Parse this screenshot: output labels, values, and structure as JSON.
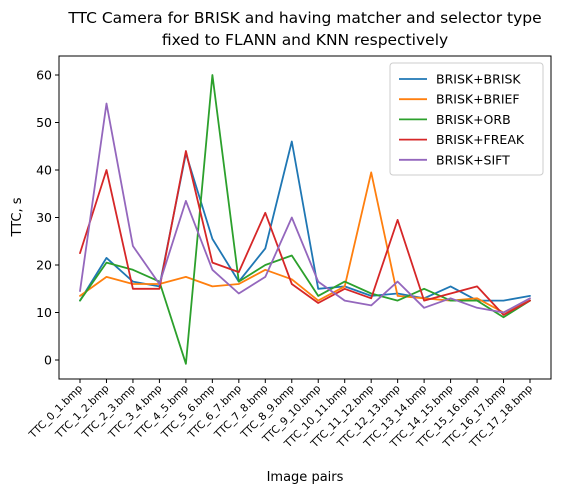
{
  "chart_data": {
    "type": "line",
    "title_lines": [
      "TTC Camera for BRISK and having matcher and selector type",
      "fixed to FLANN and KNN respectively"
    ],
    "xlabel": "Image pairs",
    "ylabel": "TTC, s",
    "ylim": [
      -4,
      64
    ],
    "yticks": [
      0,
      10,
      20,
      30,
      40,
      50,
      60
    ],
    "categories": [
      "TTC_0_1.bmp",
      "TTC_1_2.bmp",
      "TTC_2_3.bmp",
      "TTC_3_4.bmp",
      "TTC_4_5.bmp",
      "TTC_5_6.bmp",
      "TTC_6_7.bmp",
      "TTC_7_8.bmp",
      "TTC_8_9.bmp",
      "TTC_9_10.bmp",
      "TTC_10_11.bmp",
      "TTC_11_12.bmp",
      "TTC_12_13.bmp",
      "TTC_13_14.bmp",
      "TTC_14_15.bmp",
      "TTC_15_16.bmp",
      "TTC_16_17.bmp",
      "TTC_17_18.bmp"
    ],
    "legend_position": "top-right",
    "grid": false,
    "series": [
      {
        "name": "BRISK+BRISK",
        "color": "#1f77b4",
        "values": [
          12.5,
          21.5,
          16.5,
          15.5,
          43.5,
          25.5,
          16.5,
          23.5,
          46.0,
          15.0,
          15.5,
          13.5,
          14.0,
          13.0,
          15.5,
          12.5,
          12.5,
          13.5
        ]
      },
      {
        "name": "BRISK+BRIEF",
        "color": "#ff7f0e",
        "values": [
          13.5,
          17.5,
          16.0,
          16.0,
          17.5,
          15.5,
          16.0,
          19.0,
          17.0,
          12.5,
          15.5,
          39.5,
          13.5,
          13.0,
          12.5,
          13.0,
          10.0,
          12.5
        ]
      },
      {
        "name": "BRISK+ORB",
        "color": "#2ca02c",
        "values": [
          12.5,
          20.5,
          19.0,
          16.5,
          -0.8,
          60.0,
          16.5,
          20.0,
          22.0,
          13.5,
          16.5,
          14.0,
          12.5,
          15.0,
          12.5,
          12.5,
          9.0,
          12.5
        ]
      },
      {
        "name": "BRISK+FREAK",
        "color": "#d62728",
        "values": [
          22.5,
          40.0,
          15.0,
          15.0,
          44.0,
          20.5,
          18.5,
          31.0,
          16.0,
          12.0,
          15.0,
          13.0,
          29.5,
          12.5,
          14.0,
          15.5,
          9.5,
          12.5
        ]
      },
      {
        "name": "BRISK+SIFT",
        "color": "#9467bd",
        "values": [
          14.5,
          54.0,
          24.0,
          16.0,
          33.5,
          19.0,
          14.0,
          17.5,
          30.0,
          16.5,
          12.5,
          11.5,
          16.5,
          11.0,
          13.0,
          11.0,
          10.0,
          13.0
        ]
      }
    ]
  }
}
